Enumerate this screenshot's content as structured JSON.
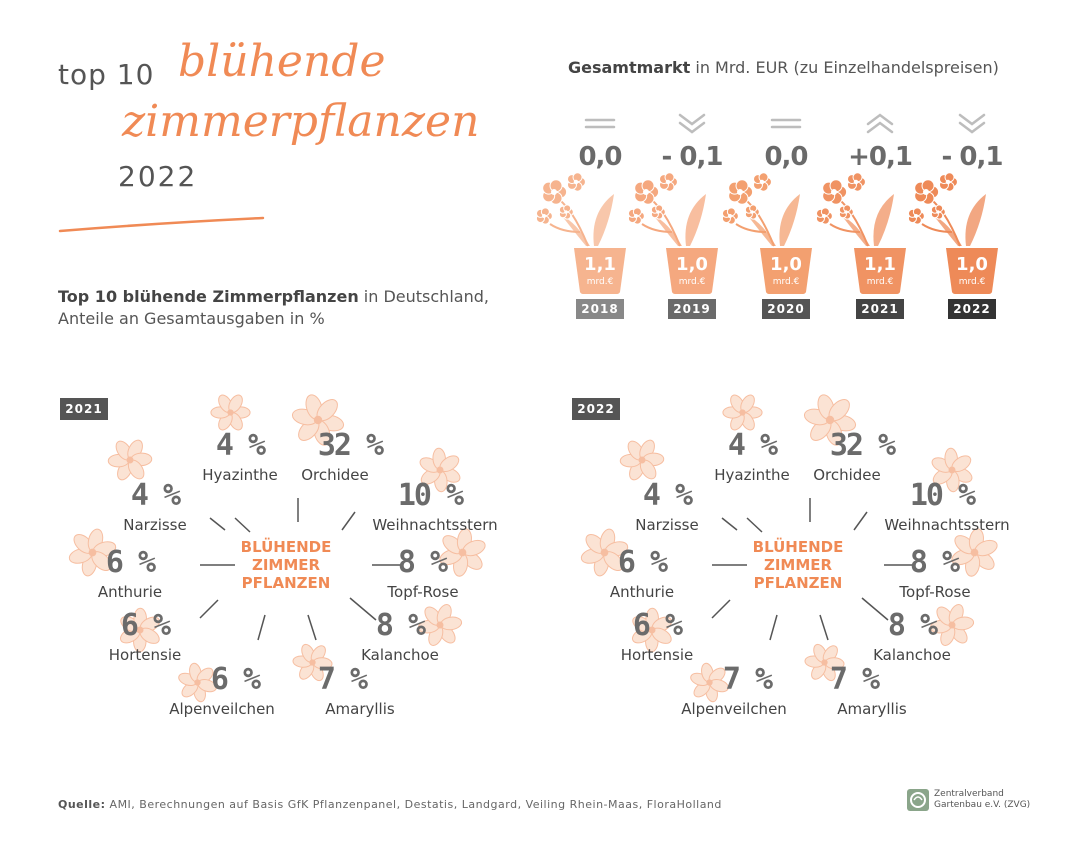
{
  "header": {
    "top_label": "top 10",
    "script_line1": "blühende",
    "script_line2": "zimmerpflanzen",
    "year": "2022"
  },
  "subtitle": {
    "bold": "Top 10 blühende Zimmerpflanzen",
    "rest1": " in Deutschland,",
    "line2": "Anteile an Gesamtausgaben in %"
  },
  "market": {
    "title_bold": "Gesamtmarkt",
    "title_rest": " in Mrd. EUR (zu Einzelhandelspreisen)",
    "unit": "mrd.€",
    "years": [
      {
        "year": "2018",
        "value": "1,1",
        "change": "0,0",
        "trend": "equal",
        "badge_color": "#888888"
      },
      {
        "year": "2019",
        "value": "1,0",
        "change": "- 0,1",
        "trend": "down",
        "badge_color": "#6a6a6a"
      },
      {
        "year": "2020",
        "value": "1,0",
        "change": "0,0",
        "trend": "equal",
        "badge_color": "#555555"
      },
      {
        "year": "2021",
        "value": "1,1",
        "change": "+0,1",
        "trend": "up",
        "badge_color": "#444444"
      },
      {
        "year": "2022",
        "value": "1,0",
        "change": "- 0,1",
        "trend": "down",
        "badge_color": "#333333"
      }
    ]
  },
  "center_label": [
    "BLÜHENDE",
    "ZIMMER",
    "PFLANZEN"
  ],
  "chart_data": [
    {
      "type": "table",
      "panel": "2021",
      "categories": [
        "Hyazinthe",
        "Orchidee",
        "Weihnachtsstern",
        "Topf-Rose",
        "Kalanchoe",
        "Amaryllis",
        "Alpenveilchen",
        "Hortensie",
        "Anthurie",
        "Narzisse"
      ],
      "values_label": [
        "4 %",
        "32 %",
        "10 %",
        "8 %",
        "8 %",
        "7 %",
        "6 %",
        "6 %",
        "6 %",
        "4 %"
      ],
      "values": [
        4,
        32,
        10,
        8,
        8,
        7,
        6,
        6,
        6,
        4
      ],
      "unit": "%"
    },
    {
      "type": "table",
      "panel": "2022",
      "categories": [
        "Hyazinthe",
        "Orchidee",
        "Weihnachtsstern",
        "Topf-Rose",
        "Kalanchoe",
        "Amaryllis",
        "Alpenveilchen",
        "Hortensie",
        "Anthurie",
        "Narzisse"
      ],
      "values_label": [
        "4 %",
        "32 %",
        "10 %",
        "8 %",
        "8 %",
        "7 %",
        "7 %",
        "6 %",
        "6 %",
        "4 %"
      ],
      "values": [
        4,
        32,
        10,
        8,
        8,
        7,
        7,
        6,
        6,
        4
      ],
      "unit": "%"
    }
  ],
  "footer": {
    "source_bold": "Quelle:",
    "source_text": " AMI, Berechnungen auf Basis GfK Pflanzenpanel, Destatis, Landgard, Veiling Rhein-Maas, FloraHolland",
    "logo_line1": "Zentralverband",
    "logo_line2": "Gartenbau e.V. (ZVG)"
  },
  "colors": {
    "accent": "#f08a55",
    "accent_light": "#f6b48f",
    "text_dark": "#555555"
  }
}
